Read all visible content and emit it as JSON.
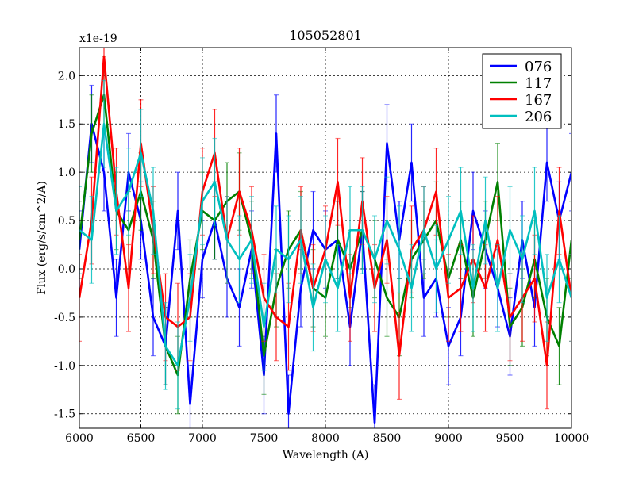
{
  "chart_data": {
    "type": "line",
    "title": "105052801",
    "xlabel": "Wavelength (A)",
    "ylabel": "Flux (erg/s/cm^2/A)",
    "offset_label": "x1e-19",
    "xlim": [
      6000,
      10000
    ],
    "ylim": [
      -1.65,
      2.29
    ],
    "xticks": [
      6000,
      6500,
      7000,
      7500,
      8000,
      8500,
      9000,
      9500,
      10000
    ],
    "yticks": [
      -1.5,
      -1.0,
      -0.5,
      0.0,
      0.5,
      1.0,
      1.5,
      2.0
    ],
    "ytick_labels": [
      "-1.5",
      "-1.0",
      "-0.5",
      "0.0",
      "0.5",
      "1.0",
      "1.5",
      "2.0"
    ],
    "grid": true,
    "legend_position": "top-right",
    "x": [
      6000,
      6100,
      6200,
      6300,
      6400,
      6500,
      6600,
      6700,
      6800,
      6900,
      7000,
      7100,
      7200,
      7300,
      7400,
      7500,
      7600,
      7700,
      7800,
      7900,
      8000,
      8100,
      8200,
      8300,
      8400,
      8500,
      8600,
      8700,
      8800,
      8900,
      9000,
      9100,
      9200,
      9300,
      9400,
      9500,
      9600,
      9700,
      9800,
      9900,
      10000
    ],
    "series": [
      {
        "name": "076",
        "color": "#0000ff",
        "yerr": 0.4,
        "values": [
          0.2,
          1.5,
          1.0,
          -0.3,
          1.0,
          0.5,
          -0.5,
          -0.8,
          0.6,
          -1.4,
          0.1,
          0.5,
          -0.1,
          -0.4,
          0.2,
          -1.1,
          1.4,
          -1.5,
          -0.2,
          0.4,
          0.2,
          0.3,
          -0.6,
          0.4,
          -1.6,
          1.3,
          0.3,
          1.1,
          -0.3,
          -0.1,
          -0.8,
          -0.5,
          0.6,
          0.2,
          -0.2,
          -0.7,
          0.3,
          -0.4,
          1.1,
          0.5,
          1.0
        ]
      },
      {
        "name": "117",
        "color": "#008000",
        "yerr": 0.4,
        "values": [
          0.3,
          1.4,
          1.8,
          0.6,
          0.4,
          0.8,
          0.3,
          -0.8,
          -1.1,
          -0.1,
          0.6,
          0.5,
          0.7,
          0.8,
          0.3,
          -0.9,
          -0.2,
          0.2,
          0.4,
          -0.2,
          -0.3,
          0.3,
          0.0,
          0.4,
          0.1,
          -0.3,
          -0.5,
          0.1,
          0.3,
          0.5,
          -0.1,
          0.3,
          -0.3,
          0.3,
          0.9,
          -0.6,
          -0.4,
          0.1,
          -0.5,
          -0.8,
          0.3
        ]
      },
      {
        "name": "167",
        "color": "#ff0000",
        "yerr": 0.45,
        "values": [
          -0.3,
          0.5,
          2.2,
          0.8,
          -0.2,
          1.3,
          0.4,
          -0.5,
          -0.6,
          -0.5,
          0.8,
          1.2,
          0.3,
          0.8,
          0.4,
          -0.3,
          -0.5,
          -0.6,
          0.4,
          -0.2,
          0.2,
          0.9,
          -0.3,
          0.7,
          -0.2,
          0.3,
          -0.9,
          0.2,
          0.4,
          0.8,
          -0.3,
          -0.2,
          0.1,
          -0.2,
          0.3,
          -0.5,
          -0.3,
          -0.1,
          -1.0,
          0.6,
          -0.3
        ]
      },
      {
        "name": "206",
        "color": "#00bfbf",
        "yerr": 0.45,
        "values": [
          0.4,
          0.3,
          1.5,
          0.6,
          0.8,
          1.2,
          0.6,
          -0.8,
          -1.0,
          -0.3,
          0.7,
          0.9,
          0.3,
          0.1,
          0.3,
          -0.6,
          0.2,
          0.1,
          0.3,
          -0.4,
          0.1,
          -0.2,
          0.4,
          0.4,
          0.1,
          0.5,
          0.2,
          -0.2,
          0.4,
          0.0,
          0.3,
          0.6,
          -0.2,
          0.5,
          -0.2,
          0.4,
          0.1,
          0.6,
          -0.3,
          0.1,
          -0.3
        ]
      }
    ]
  }
}
